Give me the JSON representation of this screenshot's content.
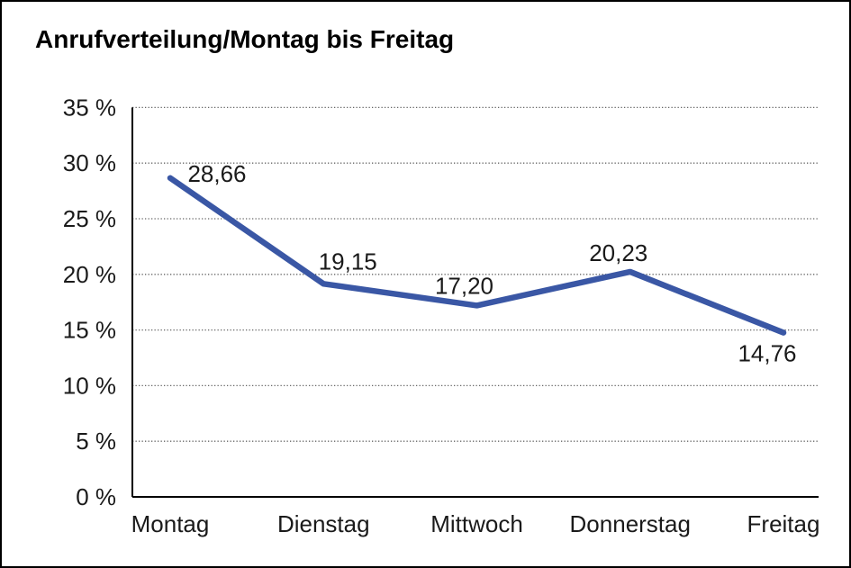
{
  "chart": {
    "title": "Anrufverteilung/Montag bis Freitag"
  },
  "chart_data": {
    "type": "line",
    "title": "Anrufverteilung/Montag bis Freitag",
    "xlabel": "",
    "ylabel": "",
    "categories": [
      "Montag",
      "Dienstag",
      "Mittwoch",
      "Donnerstag",
      "Freitag"
    ],
    "series": [
      {
        "name": "Anrufverteilung",
        "values": [
          28.66,
          19.15,
          17.2,
          20.23,
          14.76
        ]
      }
    ],
    "data_labels": [
      "28,66",
      "19,15",
      "17,20",
      "20,23",
      "14,76"
    ],
    "y_ticks": [
      "0 %",
      "5 %",
      "10 %",
      "15 %",
      "20 %",
      "25 %",
      "30 %",
      "35 %"
    ],
    "y_tick_values": [
      0,
      5,
      10,
      15,
      20,
      25,
      30,
      35
    ],
    "ylim": [
      0,
      35
    ],
    "grid": "horizontal-dotted",
    "legend": "none",
    "line_color": "#3A57A5",
    "axis_color": "#000000",
    "grid_color": "#666666",
    "text_color": "#1a1a1a"
  }
}
